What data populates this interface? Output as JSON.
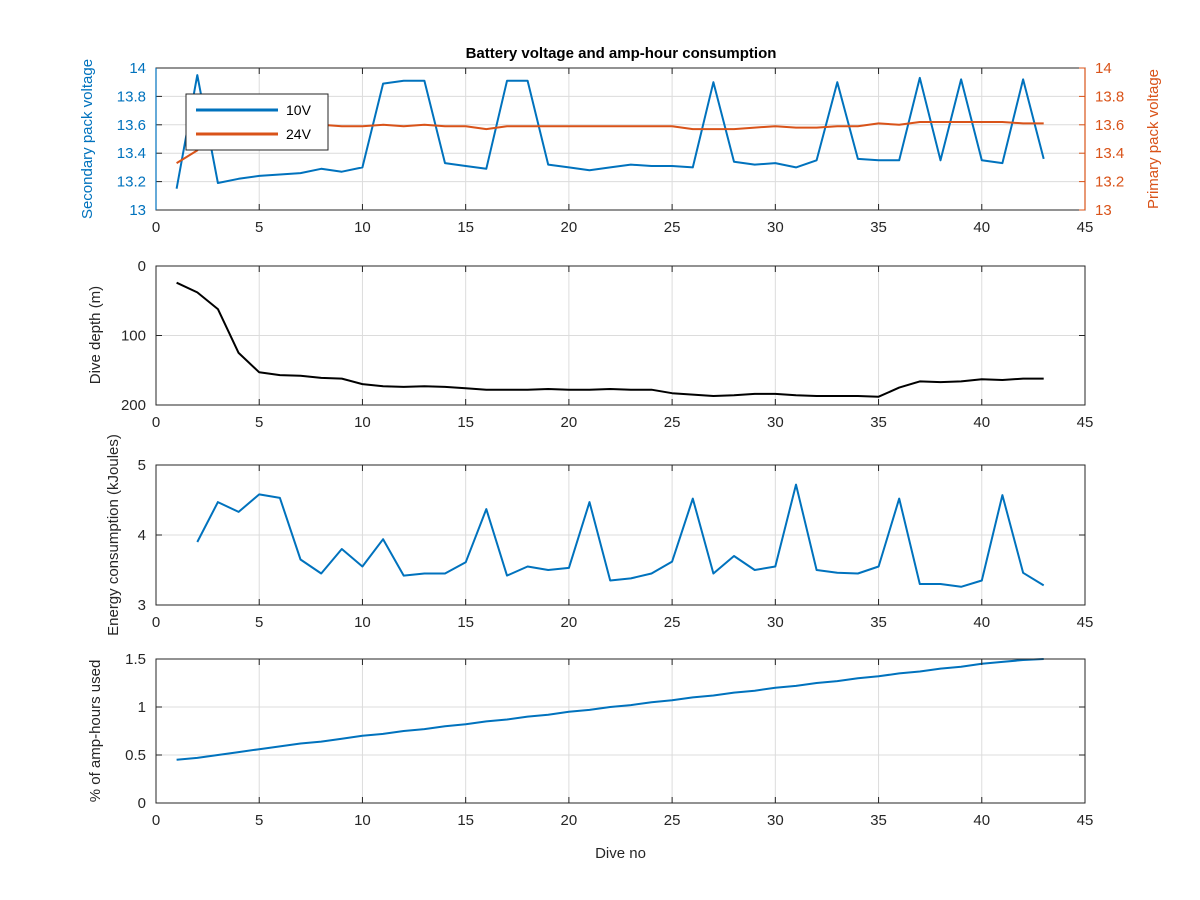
{
  "figure_title": "Battery voltage and amp-hour consumption",
  "colors": {
    "series_10v": "#0072BD",
    "series_24v": "#D95319",
    "depth": "#000000",
    "energy": "#0072BD",
    "amp_hours": "#0072BD",
    "left_axis_top": "#0072BD",
    "right_axis_top": "#D95319",
    "grid": "#dcdcdc",
    "axis": "#262626"
  },
  "chart_data": [
    {
      "type": "line",
      "title": "Battery voltage and amp-hour consumption",
      "xlabel": "",
      "ylabel": "Secondary pack voltage",
      "ylabel_right": "Primary pack voltage",
      "xlim": [
        0,
        45
      ],
      "ylim": [
        13,
        14
      ],
      "ylim_right": [
        13,
        14
      ],
      "xticks": [
        0,
        5,
        10,
        15,
        20,
        25,
        30,
        35,
        40,
        45
      ],
      "yticks": [
        13,
        13.2,
        13.4,
        13.6,
        13.8,
        14
      ],
      "yticks_right": [
        13,
        13.2,
        13.4,
        13.6,
        13.8,
        14
      ],
      "grid": true,
      "legend": "top-left",
      "series": [
        {
          "name": "10V",
          "axis": "left",
          "x": [
            1,
            2,
            3,
            4,
            5,
            6,
            7,
            8,
            9,
            10,
            11,
            12,
            13,
            14,
            15,
            16,
            17,
            18,
            19,
            20,
            21,
            22,
            23,
            24,
            25,
            26,
            27,
            28,
            29,
            30,
            31,
            32,
            33,
            34,
            35,
            36,
            37,
            38,
            39,
            40,
            41,
            42,
            43
          ],
          "values": [
            13.15,
            13.95,
            13.19,
            13.22,
            13.24,
            13.25,
            13.26,
            13.29,
            13.27,
            13.3,
            13.89,
            13.91,
            13.91,
            13.33,
            13.31,
            13.29,
            13.91,
            13.91,
            13.32,
            13.3,
            13.28,
            13.3,
            13.32,
            13.31,
            13.31,
            13.3,
            13.9,
            13.34,
            13.32,
            13.33,
            13.3,
            13.35,
            13.9,
            13.36,
            13.35,
            13.35,
            13.93,
            13.35,
            13.92,
            13.35,
            13.33,
            13.92,
            13.36
          ]
        },
        {
          "name": "24V",
          "axis": "right",
          "x": [
            1,
            2,
            3,
            4,
            5,
            6,
            7,
            8,
            9,
            10,
            11,
            12,
            13,
            14,
            15,
            16,
            17,
            18,
            19,
            20,
            21,
            22,
            23,
            24,
            25,
            26,
            27,
            28,
            29,
            30,
            31,
            32,
            33,
            34,
            35,
            36,
            37,
            38,
            39,
            40,
            41,
            42,
            43
          ],
          "values": [
            13.33,
            13.42,
            13.6,
            13.6,
            13.6,
            13.6,
            13.6,
            13.6,
            13.59,
            13.59,
            13.6,
            13.59,
            13.6,
            13.59,
            13.59,
            13.57,
            13.59,
            13.59,
            13.59,
            13.59,
            13.59,
            13.59,
            13.59,
            13.59,
            13.59,
            13.57,
            13.57,
            13.57,
            13.58,
            13.59,
            13.58,
            13.58,
            13.59,
            13.59,
            13.61,
            13.6,
            13.62,
            13.62,
            13.62,
            13.62,
            13.62,
            13.61,
            13.61
          ]
        }
      ]
    },
    {
      "type": "line",
      "title": "",
      "xlabel": "",
      "ylabel": "Dive depth (m)",
      "xlim": [
        0,
        45
      ],
      "ylim": [
        0,
        200
      ],
      "y_reversed": true,
      "xticks": [
        0,
        5,
        10,
        15,
        20,
        25,
        30,
        35,
        40,
        45
      ],
      "yticks": [
        0,
        100,
        200
      ],
      "grid": true,
      "series": [
        {
          "x": [
            1,
            2,
            3,
            4,
            5,
            6,
            7,
            8,
            9,
            10,
            11,
            12,
            13,
            14,
            15,
            16,
            17,
            18,
            19,
            20,
            21,
            22,
            23,
            24,
            25,
            26,
            27,
            28,
            29,
            30,
            31,
            32,
            33,
            34,
            35,
            36,
            37,
            38,
            39,
            40,
            41,
            42,
            43
          ],
          "values": [
            24,
            38,
            62,
            125,
            153,
            157,
            158,
            161,
            162,
            170,
            173,
            174,
            173,
            174,
            176,
            178,
            178,
            178,
            177,
            178,
            178,
            177,
            178,
            178,
            183,
            185,
            187,
            186,
            184,
            184,
            186,
            187,
            187,
            187,
            188,
            175,
            166,
            167,
            166,
            163,
            164,
            162,
            162
          ]
        }
      ]
    },
    {
      "type": "line",
      "title": "",
      "xlabel": "",
      "ylabel": "Energy consumption (kJoules)",
      "xlim": [
        0,
        45
      ],
      "ylim": [
        3,
        5
      ],
      "xticks": [
        0,
        5,
        10,
        15,
        20,
        25,
        30,
        35,
        40,
        45
      ],
      "yticks": [
        3,
        4,
        5
      ],
      "grid": true,
      "series": [
        {
          "x": [
            2,
            3,
            4,
            5,
            6,
            7,
            8,
            9,
            10,
            11,
            12,
            13,
            14,
            15,
            16,
            17,
            18,
            19,
            20,
            21,
            22,
            23,
            24,
            25,
            26,
            27,
            28,
            29,
            30,
            31,
            32,
            33,
            34,
            35,
            36,
            37,
            38,
            39,
            40,
            41,
            42,
            43
          ],
          "values": [
            3.9,
            4.47,
            4.33,
            4.58,
            4.53,
            3.65,
            3.45,
            3.8,
            3.55,
            3.94,
            3.42,
            3.45,
            3.45,
            3.61,
            4.37,
            3.42,
            3.55,
            3.5,
            3.53,
            4.47,
            3.35,
            3.38,
            3.45,
            3.62,
            4.52,
            3.45,
            3.7,
            3.5,
            3.55,
            4.72,
            3.5,
            3.46,
            3.45,
            3.55,
            4.52,
            3.3,
            3.3,
            3.26,
            3.35,
            4.57,
            3.46,
            3.28
          ]
        }
      ]
    },
    {
      "type": "line",
      "title": "",
      "xlabel": "Dive no",
      "ylabel": "% of amp-hours used",
      "xlim": [
        0,
        45
      ],
      "ylim": [
        0,
        1.5
      ],
      "xticks": [
        0,
        5,
        10,
        15,
        20,
        25,
        30,
        35,
        40,
        45
      ],
      "yticks": [
        0,
        0.5,
        1,
        1.5
      ],
      "grid": true,
      "series": [
        {
          "x": [
            1,
            2,
            3,
            4,
            5,
            6,
            7,
            8,
            9,
            10,
            11,
            12,
            13,
            14,
            15,
            16,
            17,
            18,
            19,
            20,
            21,
            22,
            23,
            24,
            25,
            26,
            27,
            28,
            29,
            30,
            31,
            32,
            33,
            34,
            35,
            36,
            37,
            38,
            39,
            40,
            41,
            42,
            43
          ],
          "values": [
            0.45,
            0.47,
            0.5,
            0.53,
            0.56,
            0.59,
            0.62,
            0.64,
            0.67,
            0.7,
            0.72,
            0.75,
            0.77,
            0.8,
            0.82,
            0.85,
            0.87,
            0.9,
            0.92,
            0.95,
            0.97,
            1.0,
            1.02,
            1.05,
            1.07,
            1.1,
            1.12,
            1.15,
            1.17,
            1.2,
            1.22,
            1.25,
            1.27,
            1.3,
            1.32,
            1.35,
            1.37,
            1.4,
            1.42,
            1.45,
            1.47,
            1.49,
            1.5
          ]
        }
      ]
    }
  ]
}
